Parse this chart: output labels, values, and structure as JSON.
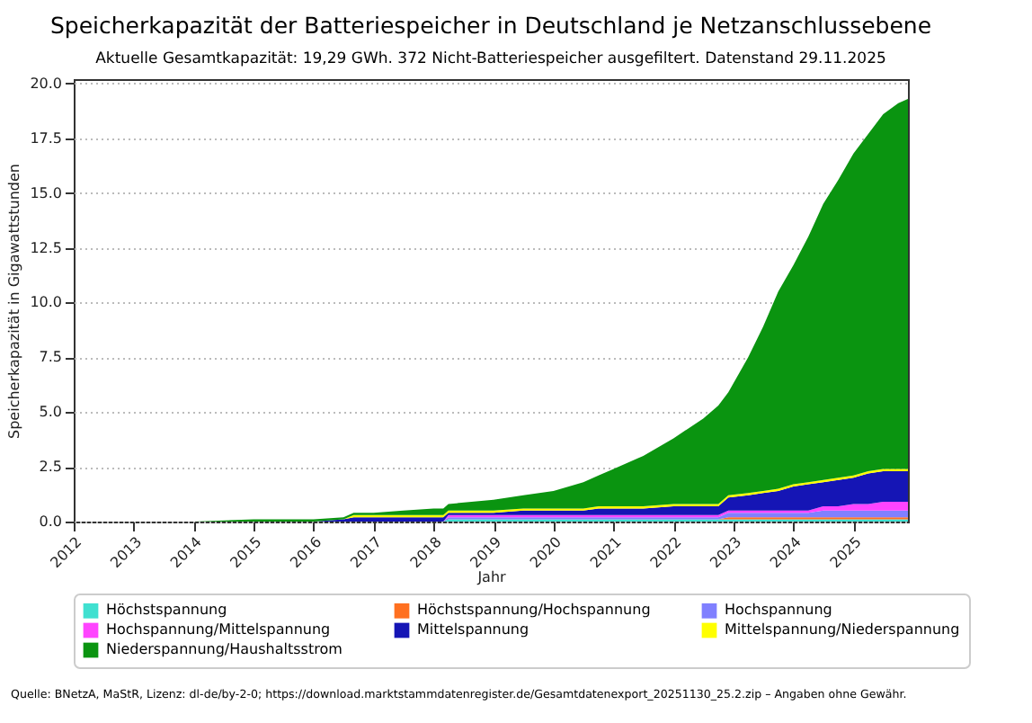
{
  "chart_data": {
    "type": "area",
    "stacked": true,
    "title": "Speicherkapazität der Batteriespeicher in Deutschland je Netzanschlussebene",
    "subtitle": "Aktuelle Gesamtkapazität: 19,29 GWh. 372 Nicht-Batteriespeicher ausgefiltert. Datenstand 29.11.2025",
    "xlabel": "Jahr",
    "ylabel": "Speicherkapazität in Gigawattstunden",
    "annotations": [
      "Quelle: BNetzA, MaStR, Lizenz: dl-de/by-2-0; https://download.marktstammdatenregister.de/Gesamtdatenexport_20251130_25.2.zip – Angaben ohne Gewähr."
    ],
    "x": [
      "2012-01",
      "2013-01",
      "2014-01",
      "2015-01",
      "2016-01",
      "2016-07",
      "2016-09",
      "2017-01",
      "2017-07",
      "2018-01",
      "2018-03",
      "2018-04",
      "2019-01",
      "2019-07",
      "2020-01",
      "2020-07",
      "2020-10",
      "2021-01",
      "2021-07",
      "2022-01",
      "2022-07",
      "2022-10",
      "2022-12",
      "2023-04",
      "2023-07",
      "2023-10",
      "2024-01",
      "2024-04",
      "2024-07",
      "2024-10",
      "2025-01",
      "2025-04",
      "2025-07",
      "2025-10",
      "2025-11-29"
    ],
    "series": [
      {
        "name": "Höchstspannung",
        "color": "#40e0d0",
        "values": [
          0,
          0,
          0,
          0,
          0,
          0,
          0,
          0,
          0,
          0,
          0,
          0.1,
          0.1,
          0.1,
          0.1,
          0.1,
          0.1,
          0.1,
          0.1,
          0.1,
          0.1,
          0.1,
          0.1,
          0.1,
          0.1,
          0.1,
          0.1,
          0.1,
          0.1,
          0.1,
          0.1,
          0.1,
          0.1,
          0.1,
          0.1
        ]
      },
      {
        "name": "Höchstspannung/Hochspannung",
        "color": "#ff7020",
        "values": [
          0,
          0,
          0,
          0,
          0,
          0,
          0,
          0,
          0,
          0,
          0,
          0,
          0,
          0,
          0,
          0,
          0,
          0,
          0,
          0,
          0,
          0,
          0.1,
          0.1,
          0.1,
          0.1,
          0.1,
          0.1,
          0.1,
          0.1,
          0.1,
          0.1,
          0.1,
          0.1,
          0.1
        ]
      },
      {
        "name": "Hochspannung",
        "color": "#8080ff",
        "values": [
          0,
          0,
          0,
          0,
          0,
          0,
          0,
          0,
          0,
          0,
          0,
          0.1,
          0.1,
          0.1,
          0.1,
          0.1,
          0.1,
          0.1,
          0.1,
          0.1,
          0.1,
          0.1,
          0.2,
          0.2,
          0.2,
          0.2,
          0.2,
          0.2,
          0.3,
          0.3,
          0.3,
          0.3,
          0.3,
          0.3,
          0.3
        ]
      },
      {
        "name": "Hochspannung/Mittelspannung",
        "color": "#ff44ff",
        "values": [
          0,
          0,
          0,
          0,
          0,
          0,
          0,
          0,
          0,
          0,
          0,
          0.1,
          0.1,
          0.1,
          0.1,
          0.1,
          0.1,
          0.1,
          0.1,
          0.1,
          0.1,
          0.1,
          0.1,
          0.1,
          0.1,
          0.1,
          0.1,
          0.1,
          0.2,
          0.2,
          0.3,
          0.3,
          0.4,
          0.4,
          0.4
        ]
      },
      {
        "name": "Mittelspannung",
        "color": "#1515b5",
        "values": [
          0,
          0,
          0,
          0,
          0,
          0.1,
          0.2,
          0.2,
          0.2,
          0.2,
          0.2,
          0.1,
          0.1,
          0.2,
          0.2,
          0.2,
          0.3,
          0.3,
          0.3,
          0.4,
          0.4,
          0.4,
          0.6,
          0.7,
          0.8,
          0.9,
          1.1,
          1.2,
          1.1,
          1.2,
          1.2,
          1.4,
          1.4,
          1.4,
          1.4
        ]
      },
      {
        "name": "Mittelspannung/Niederspannung",
        "color": "#ffff00",
        "values": [
          0,
          0,
          0,
          0,
          0,
          0,
          0.1,
          0.1,
          0.1,
          0.1,
          0.1,
          0.1,
          0.1,
          0.1,
          0.1,
          0.1,
          0.1,
          0.1,
          0.1,
          0.1,
          0.1,
          0.1,
          0.1,
          0.1,
          0.1,
          0.1,
          0.1,
          0.1,
          0.1,
          0.1,
          0.1,
          0.1,
          0.1,
          0.1,
          0.1
        ]
      },
      {
        "name": "Niederspannung/Haushaltsstrom",
        "color": "#0a9410",
        "values": [
          0,
          0,
          0,
          0.1,
          0.1,
          0.1,
          0.1,
          0.1,
          0.2,
          0.3,
          0.3,
          0.3,
          0.5,
          0.6,
          0.8,
          1.2,
          1.4,
          1.7,
          2.3,
          3.0,
          3.9,
          4.5,
          4.7,
          6.2,
          7.5,
          9.0,
          10.0,
          11.2,
          12.6,
          13.6,
          14.7,
          15.4,
          16.2,
          16.7,
          16.9
        ]
      }
    ],
    "xlim": [
      "2012",
      "2025-11-29"
    ],
    "xticks": [
      {
        "value": "2012",
        "label": "2012"
      },
      {
        "value": "2013",
        "label": "2013"
      },
      {
        "value": "2014",
        "label": "2014"
      },
      {
        "value": "2015",
        "label": "2015"
      },
      {
        "value": "2016",
        "label": "2016"
      },
      {
        "value": "2017",
        "label": "2017"
      },
      {
        "value": "2018",
        "label": "2018"
      },
      {
        "value": "2019",
        "label": "2019"
      },
      {
        "value": "2020",
        "label": "2020"
      },
      {
        "value": "2021",
        "label": "2021"
      },
      {
        "value": "2022",
        "label": "2022"
      },
      {
        "value": "2023",
        "label": "2023"
      },
      {
        "value": "2024",
        "label": "2024"
      },
      {
        "value": "2025",
        "label": "2025"
      }
    ],
    "ylim": [
      0,
      20.2
    ],
    "yticks": [
      {
        "value": 0,
        "label": "0.0"
      },
      {
        "value": 2.5,
        "label": "2.5"
      },
      {
        "value": 5,
        "label": "5.0"
      },
      {
        "value": 7.5,
        "label": "7.5"
      },
      {
        "value": 10,
        "label": "10.0"
      },
      {
        "value": 12.5,
        "label": "12.5"
      },
      {
        "value": 15,
        "label": "15.0"
      },
      {
        "value": 17.5,
        "label": "17.5"
      },
      {
        "value": 20,
        "label": "20.0"
      }
    ],
    "grid": "y",
    "legend": "bottom"
  }
}
